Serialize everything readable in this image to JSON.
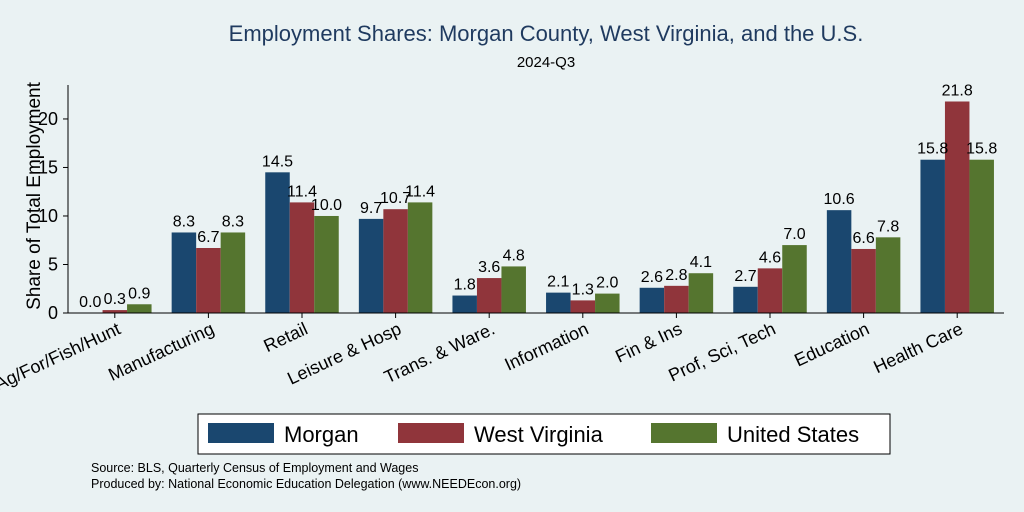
{
  "chart_data": {
    "type": "bar",
    "title": "Employment Shares: Morgan County, West Virginia, and the U.S.",
    "subtitle": "2024-Q3",
    "ylabel": "Share of Total Employment",
    "xlabel": "",
    "ylim": [
      0,
      23.5
    ],
    "yticks": [
      0,
      5,
      10,
      15,
      20
    ],
    "grid": false,
    "legend_position": "bottom",
    "categories": [
      "Ag/For/Fish/Hunt",
      "Manufacturing",
      "Retail",
      "Leisure & Hosp",
      "Trans. & Ware.",
      "Information",
      "Fin & Ins",
      "Prof, Sci, Tech",
      "Education",
      "Health Care"
    ],
    "series": [
      {
        "name": "Morgan",
        "color": "#1a476f",
        "values": [
          0.0,
          8.3,
          14.5,
          9.7,
          1.8,
          2.1,
          2.6,
          2.7,
          10.6,
          15.8
        ],
        "labels": [
          "0.0",
          "8.3",
          "14.5",
          "9.7",
          "1.8",
          "2.1",
          "2.6",
          "2.7",
          "10.6",
          "15.8"
        ]
      },
      {
        "name": "West Virginia",
        "color": "#90353b",
        "values": [
          0.3,
          6.7,
          11.4,
          10.7,
          3.6,
          1.3,
          2.8,
          4.6,
          6.6,
          21.8
        ],
        "labels": [
          "0.3",
          "6.7",
          "11.4",
          "10.7",
          "3.6",
          "1.3",
          "2.8",
          "4.6",
          "6.6",
          "21.8"
        ]
      },
      {
        "name": "United States",
        "color": "#55752f",
        "values": [
          0.9,
          8.3,
          10.0,
          11.4,
          4.8,
          2.0,
          4.1,
          7.0,
          7.8,
          15.8
        ],
        "labels": [
          "0.9",
          "8.3",
          "10.0",
          "11.4",
          "4.8",
          "2.0",
          "4.1",
          "7.0",
          "7.8",
          "15.8"
        ]
      }
    ]
  },
  "source_lines": [
    "Source: BLS, Quarterly Census of Employment and Wages",
    "Produced by: National Economic Education Delegation (www.NEEDEcon.org)"
  ]
}
